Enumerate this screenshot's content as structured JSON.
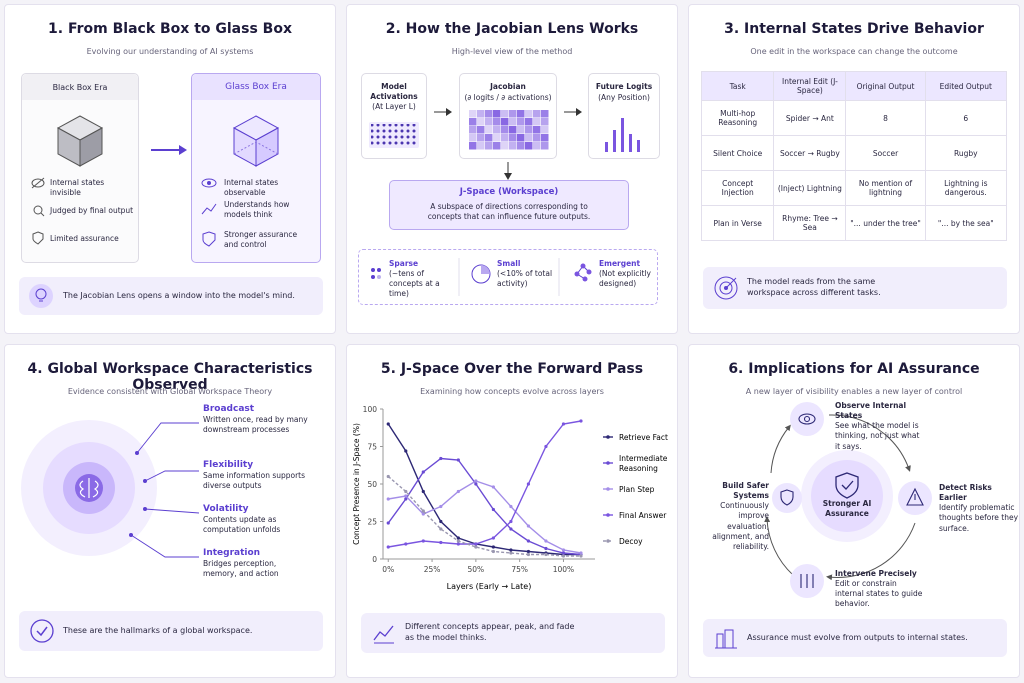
{
  "panels": [
    {
      "title": "1. From Black Box to Glass Box",
      "subtitle": "Evolving our understanding of AI systems",
      "left": {
        "heading": "Black Box Era",
        "items": [
          "Internal states invisible",
          "Judged by final output",
          "Limited assurance"
        ]
      },
      "right": {
        "heading": "Glass Box Era",
        "items": [
          "Internal states observable",
          "Understands how models think",
          "Stronger assurance and control"
        ]
      },
      "footer": "The Jacobian Lens opens a window into the model's mind."
    },
    {
      "title": "2. How the Jacobian Lens Works",
      "subtitle": "High-level view of the method",
      "boxes": [
        {
          "title": "Model Activations",
          "detail": "(At Layer L)"
        },
        {
          "title": "Jacobian",
          "detail": "(∂ logits / ∂ activations)"
        },
        {
          "title": "Future Logits",
          "detail": "(Any Position)"
        }
      ],
      "workspace": {
        "title": "J-Space (Workspace)",
        "text": "A subspace of directions corresponding to concepts that can influence future outputs."
      },
      "properties": [
        {
          "name": "Sparse",
          "detail": "(~tens of concepts at a time)"
        },
        {
          "name": "Small",
          "detail": "(<10% of total activity)"
        },
        {
          "name": "Emergent",
          "detail": "(Not explicitly designed)"
        }
      ]
    },
    {
      "title": "3. Internal States Drive Behavior",
      "subtitle": "One edit in the workspace can change the outcome",
      "table": {
        "header": [
          "Task",
          "Internal Edit (J-Space)",
          "Original Output",
          "Edited Output"
        ],
        "rows": [
          [
            "Multi-hop Reasoning",
            "Spider → Ant",
            "8",
            "6"
          ],
          [
            "Silent Choice",
            "Soccer → Rugby",
            "Soccer",
            "Rugby"
          ],
          [
            "Concept Injection",
            "(Inject) Lightning",
            "No mention of lightning",
            "Lightning is dangerous."
          ],
          [
            "Plan in Verse",
            "Rhyme: Tree → Sea",
            "\"... under the tree\"",
            "\"... by the sea\""
          ]
        ]
      },
      "footer": "The model reads from the same workspace across different tasks."
    },
    {
      "title": "4. Global Workspace Characteristics Observed",
      "subtitle": "Evidence consistent with Global Workspace Theory",
      "features": [
        {
          "name": "Broadcast",
          "text": "Written once, read by many downstream processes"
        },
        {
          "name": "Flexibility",
          "text": "Same information supports diverse outputs"
        },
        {
          "name": "Volatility",
          "text": "Contents update as computation unfolds"
        },
        {
          "name": "Integration",
          "text": "Bridges perception, memory, and action"
        }
      ],
      "footer": "These are the hallmarks of a global workspace."
    },
    {
      "title": "5. J-Space Over the Forward Pass",
      "subtitle": "Examining how concepts evolve across layers",
      "chart": {
        "type": "line",
        "x_label": "Layers (Early → Late)",
        "y_label": "Concept Presence in J-Space (%)",
        "x": [
          0,
          10,
          20,
          30,
          40,
          50,
          60,
          70,
          80,
          90,
          100,
          110
        ],
        "xlim": [
          -3,
          118
        ],
        "xticks": [
          {
            "value": 0,
            "label": "0%"
          },
          {
            "value": 25,
            "label": "25%"
          },
          {
            "value": 50,
            "label": "50%"
          },
          {
            "value": 75,
            "label": "75%"
          },
          {
            "value": 100,
            "label": "100%"
          }
        ],
        "ylim": [
          0,
          100
        ],
        "yticks": [
          0,
          25,
          50,
          75,
          100
        ],
        "series": [
          {
            "name": "Retrieve Fact",
            "color": "#2d2875",
            "values": [
              90,
              72,
              45,
              25,
              14,
              10,
              8,
              6,
              5,
              4,
              3,
              3
            ]
          },
          {
            "name": "Intermediate Reasoning",
            "color": "#6a4bd4",
            "values": [
              24,
              40,
              58,
              67,
              66,
              50,
              33,
              20,
              12,
              7,
              4,
              3
            ]
          },
          {
            "name": "Plan Step",
            "color": "#a48ee8",
            "values": [
              40,
              42,
              30,
              35,
              45,
              52,
              48,
              35,
              22,
              12,
              6,
              4
            ]
          },
          {
            "name": "Final Answer",
            "color": "#7a55e0",
            "values": [
              8,
              10,
              12,
              11,
              10,
              10,
              14,
              25,
              50,
              75,
              90,
              92
            ]
          },
          {
            "name": "Decoy",
            "color": "#9a97b0",
            "dashed": true,
            "values": [
              55,
              45,
              32,
              20,
              12,
              8,
              5,
              4,
              3,
              3,
              2,
              2
            ]
          }
        ]
      },
      "footer": "Different concepts appear, peak, and fade as the model thinks."
    },
    {
      "title": "6. Implications for AI Assurance",
      "subtitle": "A new layer of visibility enables a new layer of control",
      "center": "Stronger AI Assurance",
      "steps": [
        {
          "name": "Observe Internal States",
          "text": "See what the model is thinking, not just what it says."
        },
        {
          "name": "Detect Risks Earlier",
          "text": "Identify problematic thoughts before they surface."
        },
        {
          "name": "Intervene Precisely",
          "text": "Edit or constrain internal states to guide behavior."
        },
        {
          "name": "Build Safer Systems",
          "text": "Continuously improve evaluation, alignment, and reliability."
        }
      ],
      "footer": "Assurance must evolve from outputs to internal states."
    }
  ]
}
